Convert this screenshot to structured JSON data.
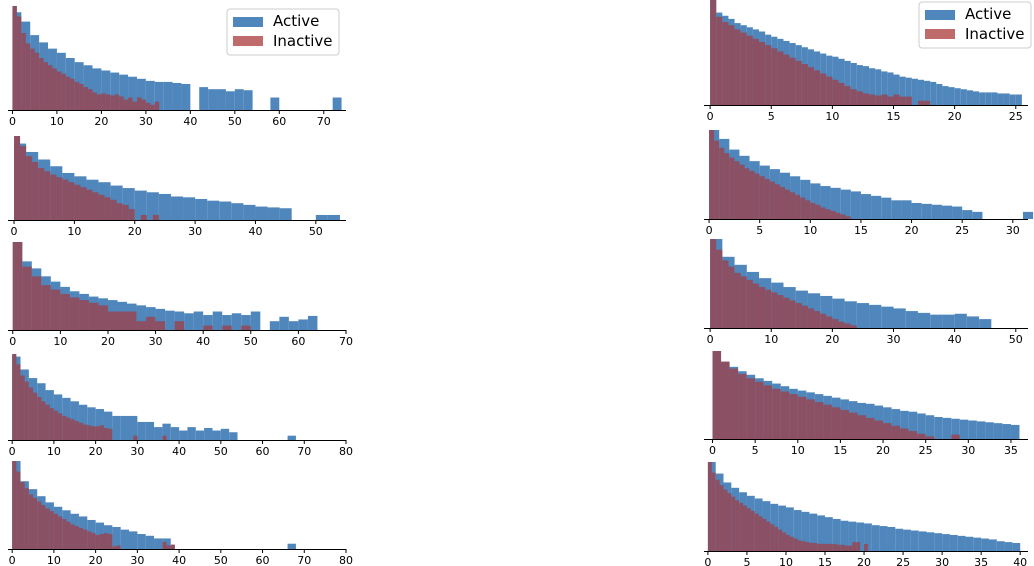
{
  "colors": {
    "active": "#4f86bb",
    "inactive": "#b04a4a",
    "overlap": "#8b5063"
  },
  "legend": {
    "items": [
      "Active",
      "Inactive"
    ]
  },
  "chart_data": [
    {
      "type": "bar",
      "subtype": "histogram",
      "panel": "left-1",
      "xlim": [
        -1,
        75
      ],
      "xticks": [
        0,
        10,
        20,
        30,
        40,
        50,
        60,
        70
      ],
      "legend": true,
      "legend_position": "upper-right",
      "series": [
        {
          "name": "Active",
          "bin_width": 2,
          "values": [
            94,
            85,
            72,
            65,
            59,
            55,
            50,
            46,
            43,
            40,
            38,
            36,
            34,
            32,
            30,
            28,
            27,
            27,
            26,
            25,
            0,
            22,
            20,
            20,
            18,
            20,
            19,
            0,
            0,
            12,
            0,
            0,
            0,
            0,
            0,
            0,
            12
          ]
        },
        {
          "name": "Inactive",
          "bin_width": 1,
          "values": [
            100,
            90,
            74,
            64,
            59,
            55,
            50,
            46,
            43,
            40,
            37,
            35,
            32,
            30,
            27,
            25,
            22,
            20,
            17,
            15,
            16,
            15,
            14,
            15,
            13,
            10,
            12,
            8,
            12,
            10,
            7,
            5,
            8
          ]
        }
      ]
    },
    {
      "type": "bar",
      "subtype": "histogram",
      "panel": "left-2",
      "xlim": [
        -1,
        55
      ],
      "xticks": [
        0,
        10,
        20,
        30,
        40,
        50
      ],
      "series": [
        {
          "name": "Active",
          "bin_width": 2,
          "values": [
            91,
            81,
            72,
            64,
            56,
            52,
            48,
            45,
            41,
            38,
            35,
            33,
            31,
            28,
            27,
            25,
            23,
            22,
            20,
            18,
            16,
            15,
            14,
            0,
            0,
            6,
            6
          ]
        },
        {
          "name": "Inactive",
          "bin_width": 1,
          "values": [
            100,
            88,
            76,
            69,
            62,
            58,
            54,
            51,
            48,
            45,
            42,
            39,
            36,
            33,
            30,
            27,
            24,
            20,
            18,
            13,
            0,
            6,
            0,
            6
          ]
        }
      ]
    },
    {
      "type": "bar",
      "subtype": "histogram",
      "panel": "left-3",
      "xlim": [
        -1,
        70
      ],
      "xticks": [
        0,
        10,
        20,
        30,
        40,
        50,
        60,
        70
      ],
      "series": [
        {
          "name": "Active",
          "bin_width": 2,
          "values": [
            100,
            78,
            70,
            61,
            55,
            49,
            44,
            41,
            38,
            36,
            34,
            32,
            30,
            28,
            26,
            24,
            22,
            21,
            19,
            21,
            17,
            21,
            17,
            19,
            17,
            21,
            0,
            10,
            15,
            10,
            12,
            16
          ]
        },
        {
          "name": "Inactive",
          "bin_width": 2,
          "values": [
            100,
            72,
            61,
            51,
            46,
            41,
            37,
            34,
            31,
            28,
            21,
            21,
            21,
            10,
            15,
            10,
            0,
            10,
            0,
            0,
            5,
            0,
            5,
            0,
            5
          ]
        }
      ]
    },
    {
      "type": "bar",
      "subtype": "histogram",
      "panel": "left-4",
      "xlim": [
        -1,
        80
      ],
      "xticks": [
        0,
        10,
        20,
        30,
        40,
        50,
        60,
        70,
        80
      ],
      "series": [
        {
          "name": "Active",
          "bin_width": 2,
          "values": [
            97,
            82,
            72,
            66,
            58,
            53,
            49,
            45,
            41,
            38,
            36,
            33,
            28,
            28,
            28,
            21,
            21,
            15,
            19,
            15,
            11,
            15,
            11,
            14,
            11,
            13,
            9,
            0,
            0,
            0,
            0,
            0,
            0,
            5
          ]
        },
        {
          "name": "Inactive",
          "bin_width": 1,
          "values": [
            100,
            88,
            75,
            68,
            61,
            55,
            50,
            45,
            41,
            37,
            34,
            31,
            28,
            26,
            24,
            22,
            20,
            18,
            17,
            16,
            16,
            17,
            14,
            13,
            0,
            0,
            0,
            0,
            0,
            5,
            0,
            0,
            0,
            0,
            0,
            0,
            5
          ]
        }
      ]
    },
    {
      "type": "bar",
      "subtype": "histogram",
      "panel": "left-5",
      "xlim": [
        -1,
        80
      ],
      "xticks": [
        0,
        10,
        20,
        30,
        40,
        50,
        60,
        70,
        80
      ],
      "series": [
        {
          "name": "Active",
          "bin_width": 2,
          "values": [
            100,
            77,
            68,
            60,
            53,
            48,
            44,
            40,
            37,
            33,
            30,
            27,
            25,
            22,
            20,
            17,
            15,
            12,
            12,
            0,
            0,
            0,
            0,
            0,
            0,
            0,
            0,
            0,
            0,
            0,
            0,
            0,
            0,
            6
          ]
        },
        {
          "name": "Inactive",
          "bin_width": 1,
          "values": [
            100,
            88,
            76,
            69,
            62,
            58,
            54,
            50,
            46,
            43,
            40,
            37,
            34,
            31,
            28,
            26,
            24,
            22,
            20,
            18,
            16,
            17,
            18,
            17,
            3,
            4,
            0,
            0,
            0,
            0,
            0,
            0,
            0,
            0,
            0,
            0,
            8,
            4,
            5,
            0,
            0,
            0,
            0,
            0,
            0,
            0,
            0,
            0,
            0
          ]
        }
      ]
    },
    {
      "type": "bar",
      "subtype": "histogram",
      "panel": "right-1",
      "xlim": [
        -0.5,
        26
      ],
      "xticks": [
        0,
        5,
        10,
        15,
        20,
        25
      ],
      "legend": true,
      "legend_position": "upper-right",
      "series": [
        {
          "name": "Active",
          "bin_width": 0.5,
          "values": [
            100,
            88,
            85,
            82,
            78,
            76,
            74,
            72,
            70,
            67,
            65,
            63,
            61,
            59,
            57,
            55,
            53,
            51,
            49,
            47,
            46,
            44,
            42,
            40,
            38,
            37,
            35,
            34,
            32,
            31,
            29,
            27,
            26,
            25,
            24,
            23,
            22,
            20,
            18,
            17,
            16,
            15,
            14,
            13,
            12,
            12,
            12,
            11,
            11,
            10,
            10
          ]
        },
        {
          "name": "Inactive",
          "bin_width": 0.5,
          "values": [
            100,
            84,
            79,
            76,
            72,
            69,
            66,
            63,
            60,
            57,
            54,
            51,
            48,
            45,
            42,
            39,
            36,
            33,
            30,
            27,
            24,
            21,
            18,
            15,
            13,
            11,
            10,
            9,
            10,
            8,
            10,
            8,
            8,
            0,
            4,
            4,
            0
          ]
        }
      ]
    },
    {
      "type": "bar",
      "subtype": "histogram",
      "panel": "right-2",
      "xlim": [
        -0.5,
        31.5
      ],
      "xticks": [
        0,
        5,
        10,
        15,
        20,
        25,
        30
      ],
      "series": [
        {
          "name": "Active",
          "bin_width": 1,
          "values": [
            100,
            90,
            78,
            71,
            65,
            60,
            56,
            52,
            48,
            44,
            40,
            37,
            35,
            33,
            31,
            28,
            26,
            24,
            21,
            21,
            18,
            17,
            16,
            15,
            14,
            10,
            8,
            0,
            0,
            0,
            0,
            8
          ]
        },
        {
          "name": "Inactive",
          "bin_width": 0.5,
          "values": [
            100,
            88,
            80,
            74,
            69,
            65,
            61,
            57,
            54,
            51,
            48,
            45,
            42,
            39,
            36,
            33,
            30,
            27,
            24,
            21,
            18,
            16,
            13,
            11,
            9,
            7,
            5,
            3
          ]
        }
      ]
    },
    {
      "type": "bar",
      "subtype": "histogram",
      "panel": "right-3",
      "xlim": [
        -1,
        52
      ],
      "xticks": [
        0,
        10,
        20,
        30,
        40,
        50
      ],
      "series": [
        {
          "name": "Active",
          "bin_width": 2,
          "values": [
            100,
            80,
            71,
            63,
            56,
            51,
            46,
            42,
            39,
            36,
            33,
            30,
            28,
            26,
            24,
            22,
            19,
            17,
            15,
            15,
            16,
            13,
            10
          ]
        },
        {
          "name": "Inactive",
          "bin_width": 1,
          "values": [
            100,
            88,
            76,
            69,
            62,
            58,
            54,
            50,
            46,
            43,
            40,
            37,
            34,
            31,
            28,
            25,
            22,
            19,
            16,
            13,
            10,
            7,
            5,
            3
          ]
        }
      ]
    },
    {
      "type": "bar",
      "subtype": "histogram",
      "panel": "right-4",
      "xlim": [
        -1,
        37
      ],
      "xticks": [
        0,
        5,
        10,
        15,
        20,
        25,
        30,
        35
      ],
      "series": [
        {
          "name": "Active",
          "bin_width": 1,
          "values": [
            100,
            85,
            82,
            77,
            73,
            69,
            66,
            63,
            60,
            57,
            55,
            53,
            51,
            49,
            47,
            45,
            43,
            41,
            40,
            38,
            36,
            34,
            32,
            31,
            29,
            27,
            25,
            24,
            23,
            22,
            21,
            20,
            19,
            18,
            17,
            16
          ]
        },
        {
          "name": "Inactive",
          "bin_width": 1,
          "values": [
            100,
            88,
            80,
            74,
            69,
            65,
            61,
            57,
            54,
            51,
            48,
            45,
            42,
            39,
            36,
            33,
            30,
            27,
            24,
            21,
            18,
            15,
            12,
            9,
            6,
            3,
            0,
            0,
            5
          ]
        }
      ]
    },
    {
      "type": "bar",
      "subtype": "histogram",
      "panel": "right-5",
      "xlim": [
        -0.5,
        41
      ],
      "xticks": [
        0,
        5,
        10,
        15,
        20,
        25,
        30,
        35,
        40
      ],
      "series": [
        {
          "name": "Active",
          "bin_width": 1,
          "values": [
            100,
            87,
            77,
            71,
            66,
            62,
            59,
            56,
            53,
            51,
            49,
            46,
            44,
            42,
            40,
            38,
            36,
            34,
            33,
            32,
            31,
            29,
            28,
            27,
            25,
            24,
            23,
            22,
            21,
            20,
            19,
            18,
            17,
            16,
            15,
            14,
            13,
            11,
            10,
            9
          ]
        },
        {
          "name": "Inactive",
          "bin_width": 0.5,
          "values": [
            100,
            88,
            80,
            74,
            69,
            65,
            61,
            57,
            54,
            51,
            48,
            45,
            42,
            39,
            36,
            33,
            30,
            27,
            24,
            21,
            18,
            16,
            14,
            12,
            11,
            10,
            9,
            9,
            8,
            8,
            8,
            8,
            8,
            7,
            7,
            6,
            6,
            10,
            10,
            0,
            8
          ]
        }
      ]
    }
  ]
}
